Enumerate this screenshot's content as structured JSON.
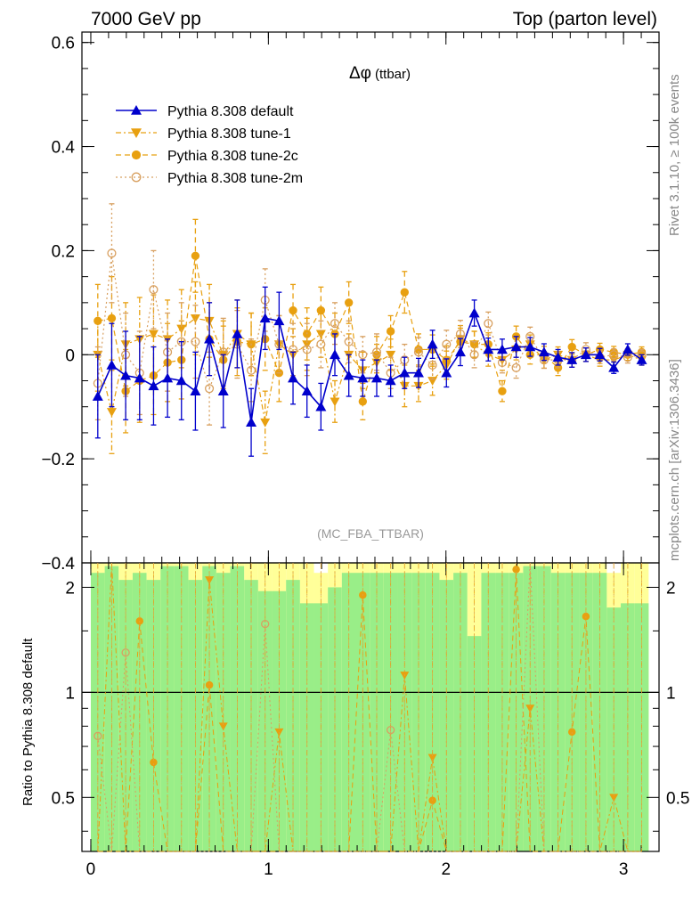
{
  "header": {
    "left": "7000 GeV pp",
    "right": "Top (parton level)"
  },
  "side_labels": {
    "rivet": "Rivet 3.1.10, ≥ 100k events",
    "mcplots": "mcplots.cern.ch [arXiv:1306.3436]"
  },
  "chart_data": {
    "type": "line",
    "title": "Δφ (ttbar)",
    "title_symbol": "Δφ",
    "title_suffix": "(ttbar)",
    "analysis": "(MC_FBA_TTBAR)",
    "xlim": [
      -0.05,
      3.2
    ],
    "ylim": [
      -0.4,
      0.62
    ],
    "x_ticks": [
      "0",
      "1",
      "2",
      "3"
    ],
    "y_ticks": [
      "0.6",
      "0.4",
      "0.2",
      "0",
      "−0.2",
      "−0.4"
    ],
    "ratio": {
      "ylabel": "Ratio to Pythia 8.308 default",
      "ylim": [
        0.35,
        2.35
      ],
      "ticks": [
        "0.5",
        "1",
        "2"
      ]
    },
    "x": [
      0.0393,
      0.1178,
      0.1963,
      0.2749,
      0.3534,
      0.432,
      0.5105,
      0.589,
      0.6676,
      0.7461,
      0.8247,
      0.9032,
      0.9817,
      1.0603,
      1.1388,
      1.2174,
      1.2959,
      1.3744,
      1.453,
      1.5315,
      1.6101,
      1.6886,
      1.7671,
      1.8457,
      1.9242,
      2.0028,
      2.0813,
      2.1598,
      2.2384,
      2.3169,
      2.3955,
      2.474,
      2.5525,
      2.6311,
      2.7096,
      2.7882,
      2.8667,
      2.9452,
      3.0238,
      3.1023
    ],
    "series": [
      {
        "name": "Pythia 8.308 default",
        "color": "#0000cc",
        "marker": "triangle-up",
        "line": "solid",
        "values": [
          -0.08,
          -0.02,
          -0.04,
          -0.045,
          -0.06,
          -0.045,
          -0.05,
          -0.07,
          0.03,
          -0.07,
          0.04,
          -0.13,
          0.07,
          0.065,
          -0.045,
          -0.07,
          -0.1,
          0.0,
          -0.04,
          -0.045,
          -0.045,
          -0.05,
          -0.035,
          -0.035,
          0.02,
          -0.035,
          0.005,
          0.08,
          0.01,
          0.01,
          0.015,
          0.015,
          0.005,
          -0.005,
          -0.01,
          0.0,
          0.0,
          -0.025,
          0.01,
          -0.01
        ],
        "errors": [
          0.08,
          0.08,
          0.085,
          0.08,
          0.075,
          0.075,
          0.075,
          0.075,
          0.07,
          0.07,
          0.065,
          0.065,
          0.06,
          0.055,
          0.05,
          0.05,
          0.045,
          0.04,
          0.04,
          0.035,
          0.035,
          0.03,
          0.03,
          0.028,
          0.027,
          0.027,
          0.026,
          0.025,
          0.022,
          0.02,
          0.02,
          0.018,
          0.016,
          0.015,
          0.014,
          0.013,
          0.012,
          0.011,
          0.011,
          0.01
        ],
        "ratio": [
          0.35,
          0.35,
          0.35,
          0.35,
          0.35,
          0.35,
          0.35,
          0.35,
          0.35,
          0.35,
          0.35,
          0.35,
          0.35,
          0.35,
          0.35,
          0.35,
          0.35,
          0.35,
          0.35,
          0.35,
          0.35,
          0.35,
          0.35,
          0.35,
          0.35,
          0.35,
          0.35,
          0.35,
          0.35,
          0.35,
          0.35,
          0.35,
          0.35,
          0.35,
          0.35,
          0.35,
          0.35,
          0.35,
          0.35,
          0.35
        ]
      },
      {
        "name": "Pythia 8.308 tune-1",
        "color": "#e8a010",
        "marker": "triangle-down",
        "line": "dashdot",
        "values": [
          0.0,
          -0.11,
          0.02,
          0.03,
          0.04,
          0.03,
          0.05,
          0.07,
          0.065,
          0.0,
          0.04,
          0.02,
          -0.13,
          0.02,
          0.0,
          0.02,
          0.04,
          -0.09,
          0.0,
          -0.03,
          -0.015,
          0.0,
          -0.06,
          -0.06,
          -0.05,
          -0.02,
          0.03,
          0.02,
          0.0,
          -0.01,
          0.01,
          0.02,
          -0.01,
          0.0,
          -0.01,
          0.0,
          -0.01,
          -0.01,
          0.0,
          -0.01
        ],
        "errors": [
          0.07,
          0.08,
          0.08,
          0.08,
          0.075,
          0.075,
          0.075,
          0.07,
          0.07,
          0.065,
          0.065,
          0.06,
          0.06,
          0.055,
          0.05,
          0.05,
          0.045,
          0.04,
          0.04,
          0.035,
          0.035,
          0.03,
          0.04,
          0.03,
          0.028,
          0.027,
          0.026,
          0.025,
          0.022,
          0.02,
          0.02,
          0.018,
          0.016,
          0.015,
          0.014,
          0.013,
          0.012,
          0.011,
          0.011,
          0.01
        ],
        "ratio": [
          0.35,
          2.35,
          0.35,
          0.35,
          0.35,
          0.35,
          0.35,
          0.35,
          2.1,
          0.8,
          0.35,
          0.35,
          0.35,
          0.77,
          0.35,
          0.35,
          0.35,
          0.35,
          0.35,
          0.35,
          0.35,
          0.35,
          1.12,
          0.35,
          0.65,
          0.35,
          0.35,
          0.35,
          0.35,
          0.35,
          0.35,
          0.9,
          0.35,
          0.35,
          0.35,
          0.35,
          0.35,
          0.5,
          0.35,
          0.35
        ]
      },
      {
        "name": "Pythia 8.308 tune-2c",
        "color": "#e8a010",
        "marker": "circle",
        "line": "dashed",
        "values": [
          0.065,
          0.07,
          -0.07,
          -0.05,
          -0.04,
          -0.015,
          -0.01,
          0.19,
          0.03,
          -0.01,
          0.025,
          0.02,
          0.03,
          -0.035,
          0.085,
          0.04,
          0.085,
          0.04,
          0.1,
          -0.09,
          0.0,
          0.045,
          0.12,
          0.01,
          0.01,
          -0.01,
          0.025,
          0.02,
          0.02,
          -0.07,
          0.035,
          0.0,
          0.0,
          -0.025,
          0.015,
          0.0,
          0.01,
          0.005,
          0.0,
          0.005
        ],
        "errors": [
          0.07,
          0.08,
          0.08,
          0.08,
          0.075,
          0.075,
          0.075,
          0.07,
          0.07,
          0.065,
          0.065,
          0.06,
          0.06,
          0.055,
          0.05,
          0.05,
          0.045,
          0.04,
          0.04,
          0.035,
          0.035,
          0.03,
          0.04,
          0.03,
          0.028,
          0.027,
          0.026,
          0.025,
          0.022,
          0.02,
          0.02,
          0.018,
          0.016,
          0.015,
          0.014,
          0.013,
          0.012,
          0.011,
          0.011,
          0.01
        ],
        "ratio": [
          0.35,
          0.35,
          0.35,
          1.6,
          0.63,
          0.35,
          0.35,
          0.35,
          1.05,
          0.35,
          0.35,
          0.35,
          0.35,
          0.35,
          0.35,
          0.35,
          0.35,
          0.35,
          0.35,
          1.9,
          0.35,
          0.35,
          0.35,
          0.35,
          0.49,
          0.35,
          0.35,
          0.35,
          0.35,
          0.35,
          2.25,
          0.35,
          0.35,
          0.35,
          0.77,
          1.65,
          0.35,
          0.35,
          0.35,
          0.35
        ]
      },
      {
        "name": "Pythia 8.308 tune-2m",
        "color": "#d8a060",
        "marker": "circle-open",
        "line": "dotted",
        "values": [
          -0.055,
          0.195,
          0.0,
          -0.035,
          0.125,
          0.005,
          0.025,
          0.025,
          -0.065,
          0.005,
          0.02,
          -0.03,
          0.105,
          0.02,
          0.01,
          0.01,
          0.02,
          0.06,
          0.025,
          0.0,
          0.005,
          -0.035,
          -0.01,
          0.005,
          -0.02,
          0.02,
          0.04,
          0.0,
          0.06,
          -0.015,
          -0.025,
          0.035,
          -0.01,
          -0.01,
          -0.01,
          0.01,
          -0.005,
          0.0,
          -0.005,
          0.0
        ],
        "errors": [
          0.07,
          0.095,
          0.08,
          0.08,
          0.075,
          0.075,
          0.075,
          0.07,
          0.07,
          0.065,
          0.065,
          0.06,
          0.06,
          0.055,
          0.05,
          0.05,
          0.045,
          0.04,
          0.04,
          0.035,
          0.035,
          0.03,
          0.03,
          0.028,
          0.027,
          0.027,
          0.026,
          0.025,
          0.022,
          0.02,
          0.02,
          0.018,
          0.016,
          0.015,
          0.014,
          0.013,
          0.012,
          0.011,
          0.011,
          0.01
        ],
        "ratio": [
          0.75,
          0.35,
          1.3,
          0.35,
          0.35,
          0.35,
          0.35,
          0.35,
          0.35,
          0.35,
          0.35,
          0.35,
          1.57,
          0.35,
          0.35,
          0.35,
          0.35,
          0.35,
          0.35,
          0.35,
          0.35,
          0.78,
          0.35,
          0.35,
          0.35,
          0.35,
          0.35,
          0.35,
          0.35,
          0.35,
          0.35,
          2.35,
          0.35,
          0.35,
          0.35,
          0.35,
          0.35,
          0.35,
          0.35,
          0.35
        ]
      }
    ],
    "uncertainty_bands": {
      "inner_color": "#99ee88",
      "outer_color": "#ffff99",
      "inner_upper": [
        2.2,
        2.3,
        2.1,
        2.2,
        2.1,
        2.3,
        2.3,
        2.1,
        2.3,
        2.2,
        2.3,
        2.1,
        1.95,
        1.95,
        2.1,
        1.8,
        1.8,
        2.0,
        2.2,
        2.2,
        2.2,
        2.2,
        2.2,
        2.2,
        2.2,
        2.1,
        2.2,
        1.45,
        2.2,
        2.2,
        2.2,
        2.3,
        2.3,
        2.2,
        2.2,
        2.2,
        2.2,
        1.75,
        1.8,
        1.8
      ],
      "inner_lower": [
        0.35,
        0.35,
        0.35,
        0.35,
        0.35,
        0.35,
        0.35,
        0.35,
        0.35,
        0.35,
        0.35,
        0.35,
        0.35,
        0.35,
        0.35,
        0.35,
        0.35,
        0.35,
        0.35,
        0.35,
        0.35,
        0.35,
        0.35,
        0.35,
        0.35,
        0.35,
        0.35,
        0.35,
        0.35,
        0.35,
        0.35,
        0.35,
        0.35,
        0.35,
        0.35,
        0.35,
        0.35,
        0.35,
        0.35,
        0.35
      ],
      "outer_upper": [
        2.35,
        2.35,
        2.35,
        2.35,
        2.35,
        2.35,
        2.35,
        2.35,
        2.35,
        2.35,
        2.35,
        2.35,
        2.35,
        2.35,
        2.35,
        2.35,
        2.2,
        2.35,
        2.35,
        2.35,
        2.35,
        2.35,
        2.35,
        2.35,
        2.35,
        2.35,
        2.35,
        2.35,
        2.35,
        2.35,
        2.35,
        2.35,
        2.35,
        2.35,
        2.35,
        2.35,
        2.35,
        2.2,
        2.35,
        2.35
      ],
      "outer_lower": [
        0.35,
        0.35,
        0.35,
        0.35,
        0.35,
        0.35,
        0.35,
        0.35,
        0.35,
        0.35,
        0.35,
        0.35,
        0.35,
        0.35,
        0.35,
        0.35,
        0.35,
        0.35,
        0.35,
        0.35,
        0.35,
        0.35,
        0.35,
        0.35,
        0.35,
        0.35,
        0.35,
        0.35,
        0.35,
        0.35,
        0.35,
        0.35,
        0.35,
        0.35,
        0.35,
        0.35,
        0.35,
        0.35,
        0.35,
        0.35
      ]
    }
  }
}
